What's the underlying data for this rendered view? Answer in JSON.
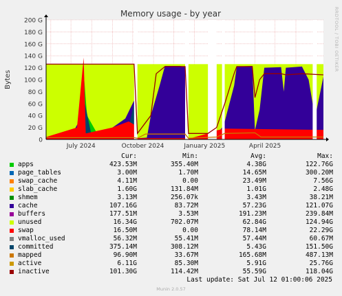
{
  "side_label": "RRDTOOL / TOBI OETIKER",
  "chart_data": {
    "type": "area",
    "title": "Memory usage - by year",
    "ylabel": "Bytes",
    "xlabel": "",
    "ylim": [
      0,
      200
    ],
    "y_unit": "G",
    "y_ticks": [
      "0",
      "20 G",
      "40 G",
      "60 G",
      "80 G",
      "100 G",
      "120 G",
      "140 G",
      "160 G",
      "180 G",
      "200 G"
    ],
    "x_ticks": [
      "July 2024",
      "October 2024",
      "January 2025",
      "April 2025"
    ],
    "x_range": [
      "2024-05-25",
      "2025-07-12"
    ],
    "grid": true,
    "gaps": [
      [
        "2024-10-03",
        "2024-10-08"
      ],
      [
        "2024-12-18",
        "2024-12-23"
      ],
      [
        "2025-01-21",
        "2025-02-03"
      ],
      [
        "2025-02-11",
        "2025-02-15"
      ],
      [
        "2025-06-26",
        "2025-07-02"
      ]
    ],
    "series": [
      {
        "name": "unused",
        "color": "#ccff00",
        "points": [
          [
            "2024-05-25",
            126
          ],
          [
            "2024-10-03",
            126
          ],
          [
            "2024-10-08",
            126
          ],
          [
            "2024-12-18",
            126
          ],
          [
            "2024-12-23",
            126
          ],
          [
            "2025-01-21",
            126
          ],
          [
            "2025-02-03",
            126
          ],
          [
            "2025-02-11",
            126
          ],
          [
            "2025-02-15",
            126
          ],
          [
            "2025-06-26",
            126
          ],
          [
            "2025-07-02",
            126
          ],
          [
            "2025-07-12",
            126
          ]
        ]
      },
      {
        "name": "cache",
        "color": "#330099",
        "points": [
          [
            "2024-05-25",
            3
          ],
          [
            "2024-06-30",
            4
          ],
          [
            "2024-07-13",
            30
          ],
          [
            "2024-07-20",
            70
          ],
          [
            "2024-07-25",
            40
          ],
          [
            "2024-08-05",
            8
          ],
          [
            "2024-08-20",
            15
          ],
          [
            "2024-09-01",
            20
          ],
          [
            "2024-09-20",
            35
          ],
          [
            "2024-10-03",
            65
          ],
          [
            "2024-10-08",
            2
          ],
          [
            "2024-10-22",
            3
          ],
          [
            "2024-10-28",
            40
          ],
          [
            "2024-11-10",
            90
          ],
          [
            "2024-11-18",
            123
          ],
          [
            "2024-12-10",
            123
          ],
          [
            "2024-12-18",
            122
          ],
          [
            "2024-12-23",
            2
          ],
          [
            "2025-01-21",
            5
          ],
          [
            "2025-02-03",
            8
          ],
          [
            "2025-02-11",
            20
          ],
          [
            "2025-02-15",
            30
          ],
          [
            "2025-02-22",
            60
          ],
          [
            "2025-03-01",
            90
          ],
          [
            "2025-03-05",
            122
          ],
          [
            "2025-03-28",
            123
          ],
          [
            "2025-04-01",
            15
          ],
          [
            "2025-04-08",
            50
          ],
          [
            "2025-04-15",
            120
          ],
          [
            "2025-05-10",
            121
          ],
          [
            "2025-05-14",
            80
          ],
          [
            "2025-05-17",
            120
          ],
          [
            "2025-06-10",
            122
          ],
          [
            "2025-06-20",
            100
          ],
          [
            "2025-06-26",
            60
          ],
          [
            "2025-07-02",
            50
          ],
          [
            "2025-07-12",
            105
          ]
        ]
      },
      {
        "name": "apps",
        "color": "#00cc00",
        "points": [
          [
            "2024-05-25",
            2
          ],
          [
            "2024-06-20",
            3
          ],
          [
            "2024-07-10",
            20
          ],
          [
            "2024-07-20",
            112
          ],
          [
            "2024-07-25",
            40
          ],
          [
            "2024-08-10",
            8
          ],
          [
            "2024-09-01",
            12
          ],
          [
            "2024-09-20",
            20
          ],
          [
            "2024-10-03",
            5
          ],
          [
            "2024-10-08",
            1
          ],
          [
            "2024-12-18",
            1
          ],
          [
            "2024-12-23",
            1
          ],
          [
            "2025-07-12",
            1
          ]
        ]
      },
      {
        "name": "committed",
        "color": "#00456a",
        "points": [
          [
            "2024-05-25",
            1
          ],
          [
            "2024-07-10",
            5
          ],
          [
            "2024-07-20",
            70
          ],
          [
            "2024-08-01",
            5
          ],
          [
            "2024-09-25",
            20
          ],
          [
            "2024-10-03",
            60
          ],
          [
            "2024-10-08",
            1
          ],
          [
            "2025-07-12",
            1
          ]
        ]
      },
      {
        "name": "swap",
        "color": "#ff0000",
        "points": [
          [
            "2024-05-25",
            4
          ],
          [
            "2024-07-10",
            20
          ],
          [
            "2024-07-20",
            137
          ],
          [
            "2024-07-23",
            10
          ],
          [
            "2024-09-01",
            20
          ],
          [
            "2024-09-25",
            30
          ],
          [
            "2024-10-03",
            25
          ],
          [
            "2024-10-08",
            2
          ],
          [
            "2024-12-18",
            2
          ],
          [
            "2024-12-23",
            1
          ],
          [
            "2025-01-21",
            10
          ],
          [
            "2025-02-03",
            15
          ],
          [
            "2025-02-15",
            18
          ],
          [
            "2025-07-12",
            16
          ]
        ]
      }
    ],
    "lines": [
      {
        "name": "inactive",
        "color": "#990000",
        "points": [
          [
            "2024-05-25",
            126
          ],
          [
            "2024-10-03",
            126
          ],
          [
            "2024-10-08",
            10
          ],
          [
            "2024-10-28",
            40
          ],
          [
            "2024-11-05",
            110
          ],
          [
            "2024-11-18",
            122
          ],
          [
            "2024-12-18",
            122
          ],
          [
            "2024-12-23",
            10
          ],
          [
            "2025-01-21",
            10
          ],
          [
            "2025-02-03",
            20
          ],
          [
            "2025-02-15",
            60
          ],
          [
            "2025-03-01",
            110
          ],
          [
            "2025-03-05",
            122
          ],
          [
            "2025-03-28",
            122
          ],
          [
            "2025-04-01",
            70
          ],
          [
            "2025-04-08",
            100
          ],
          [
            "2025-04-15",
            110
          ],
          [
            "2025-05-10",
            110
          ],
          [
            "2025-05-17",
            108
          ],
          [
            "2025-06-10",
            110
          ],
          [
            "2025-07-12",
            108
          ]
        ]
      },
      {
        "name": "mapped",
        "color": "#cc7700",
        "points": [
          [
            "2024-05-25",
            3
          ],
          [
            "2024-10-03",
            3
          ],
          [
            "2024-10-08",
            2
          ],
          [
            "2024-10-20",
            9
          ],
          [
            "2024-12-18",
            9
          ],
          [
            "2024-12-23",
            2
          ],
          [
            "2025-02-03",
            4
          ],
          [
            "2025-02-15",
            10
          ],
          [
            "2025-04-01",
            11
          ],
          [
            "2025-04-10",
            4
          ],
          [
            "2025-07-12",
            4
          ]
        ]
      }
    ]
  },
  "legend": {
    "headers": {
      "cur": "Cur:",
      "min": "Min:",
      "avg": "Avg:",
      "max": "Max:"
    },
    "rows": [
      {
        "name": "apps",
        "color": "#00cc00",
        "cur": "423.53M",
        "min": "355.40M",
        "avg": "4.38G",
        "max": "122.76G"
      },
      {
        "name": "page_tables",
        "color": "#0066b3",
        "cur": "3.00M",
        "min": "1.70M",
        "avg": "14.65M",
        "max": "300.20M"
      },
      {
        "name": "swap_cache",
        "color": "#ff8000",
        "cur": "4.11M",
        "min": "0.00",
        "avg": "23.49M",
        "max": "7.56G"
      },
      {
        "name": "slab_cache",
        "color": "#ffcc00",
        "cur": "1.60G",
        "min": "131.84M",
        "avg": "1.01G",
        "max": "2.48G"
      },
      {
        "name": "shmem",
        "color": "#008f00",
        "cur": "3.13M",
        "min": "256.07k",
        "avg": "3.43M",
        "max": "38.21M"
      },
      {
        "name": "cache",
        "color": "#330099",
        "cur": "107.16G",
        "min": "83.72M",
        "avg": "57.23G",
        "max": "121.07G"
      },
      {
        "name": "buffers",
        "color": "#990099",
        "cur": "177.51M",
        "min": "3.53M",
        "avg": "191.23M",
        "max": "239.84M"
      },
      {
        "name": "unused",
        "color": "#ccff00",
        "cur": "16.34G",
        "min": "702.07M",
        "avg": "62.84G",
        "max": "124.94G"
      },
      {
        "name": "swap",
        "color": "#ff0000",
        "cur": "16.50M",
        "min": "0.00",
        "avg": "78.14M",
        "max": "22.29G"
      },
      {
        "name": "vmalloc_used",
        "color": "#808080",
        "cur": "56.32M",
        "min": "55.41M",
        "avg": "57.44M",
        "max": "60.67M"
      },
      {
        "name": "committed",
        "color": "#00456a",
        "cur": "375.14M",
        "min": "308.12M",
        "avg": "5.43G",
        "max": "151.50G"
      },
      {
        "name": "mapped",
        "color": "#cc7700",
        "cur": "96.90M",
        "min": "33.67M",
        "avg": "165.68M",
        "max": "487.13M"
      },
      {
        "name": "active",
        "color": "#cc9900",
        "cur": "6.11G",
        "min": "85.30M",
        "avg": "5.91G",
        "max": "25.76G"
      },
      {
        "name": "inactive",
        "color": "#990000",
        "cur": "101.30G",
        "min": "114.42M",
        "avg": "55.59G",
        "max": "118.04G"
      }
    ]
  },
  "last_update": "Last update: Sat Jul 12 01:00:06 2025",
  "version": "Munin 2.0.57"
}
